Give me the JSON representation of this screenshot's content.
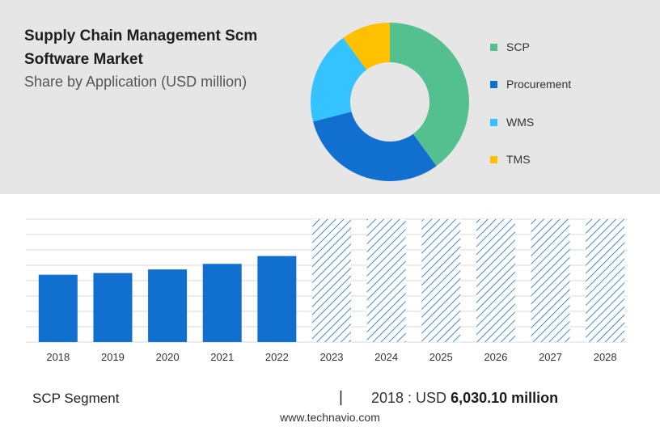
{
  "header": {
    "title": "Supply Chain Management Scm Software Market",
    "subtitle": "Share by Application (USD million)"
  },
  "chart_data": [
    {
      "type": "pie",
      "subtype": "donut",
      "title": "Share by Application (USD million)",
      "labels": [
        "SCP",
        "Procurement",
        "WMS",
        "TMS"
      ],
      "values": [
        40,
        31,
        19,
        10
      ],
      "colors": [
        "#55c08f",
        "#1170cf",
        "#34c3ff",
        "#ffc000"
      ],
      "legend_position": "right"
    },
    {
      "type": "bar",
      "categories": [
        "2018",
        "2019",
        "2020",
        "2021",
        "2022",
        "2023",
        "2024",
        "2025",
        "2026",
        "2027",
        "2028"
      ],
      "values": [
        6030.1,
        6180,
        6500,
        7000,
        7700,
        null,
        null,
        null,
        null,
        null,
        null
      ],
      "forecast_categories": [
        "2023",
        "2024",
        "2025",
        "2026",
        "2027",
        "2028"
      ],
      "ylim": [
        0,
        11000
      ],
      "grid": true,
      "bar_color": "#1170cf",
      "forecast_pattern": "diagonal-hatch"
    }
  ],
  "footer": {
    "segment": "SCP Segment",
    "separator": "|",
    "year_label": "2018 : USD",
    "value": "6,030.10 million",
    "website": "www.technavio.com"
  }
}
